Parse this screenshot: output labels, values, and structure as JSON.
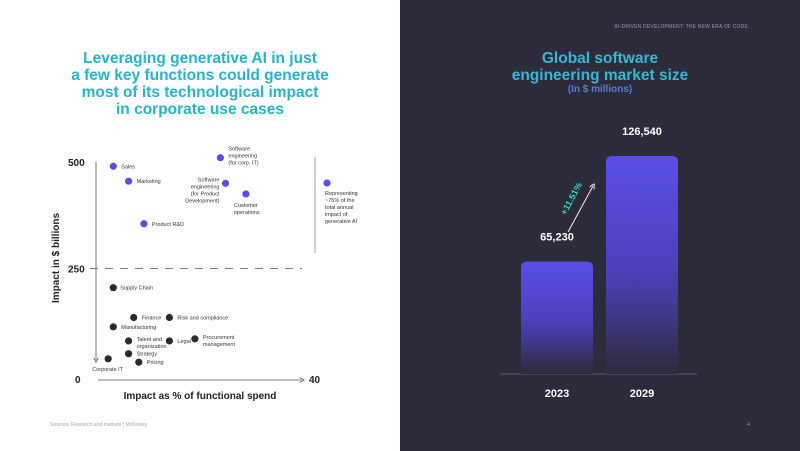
{
  "left": {
    "title": "Leveraging generative AI in just\na few key functions could generate\nmost of its technological impact\nin corporate use cases",
    "source": "Sources: Research and markets | McKinsey"
  },
  "right": {
    "header_note": "AI-DRIVEN DEVELOPMENT: THE NEW ERA OF CODE",
    "title": "Global software\nengineering market size",
    "subtitle": "(In $ millions)",
    "page_number": "4"
  },
  "colors": {
    "accent_cyan": "#23b6c8",
    "purple": "#5b4de8",
    "dark": "#2a2a2a",
    "dark_bg": "#2c2b3a",
    "growth": "#3ad6c0"
  },
  "chart_data": [
    {
      "type": "scatter",
      "xlabel": "Impact as % of functional spend",
      "ylabel": "Impact in $ billions",
      "tick_labels": [
        "500",
        "250",
        "0",
        "40"
      ],
      "xlim": [
        0,
        40
      ],
      "ylim": [
        0,
        500
      ],
      "threshold_y": 250,
      "bracket_note": "Representing\n~75% of the\ntotal annual\nimpact of\ngenerative AI",
      "series": [
        {
          "name": "high",
          "color": "#5b4de8",
          "points": [
            {
              "label": "Sales",
              "x": 3,
              "y": 490
            },
            {
              "label": "Marketing",
              "x": 6,
              "y": 455
            },
            {
              "label": "Product R&D",
              "x": 9,
              "y": 355
            },
            {
              "label": "Software\nengineering\n(for corp. IT)",
              "x": 24,
              "y": 510
            },
            {
              "label": "Software\nengineering\n(for Product\nDevelopment)",
              "x": 25,
              "y": 450
            },
            {
              "label": "Customer\noperations",
              "x": 29,
              "y": 425
            }
          ]
        },
        {
          "name": "low",
          "color": "#2a2a2a",
          "points": [
            {
              "label": "Supply Chain",
              "x": 3,
              "y": 205
            },
            {
              "label": "Finance",
              "x": 7,
              "y": 135
            },
            {
              "label": "Risk and compliance",
              "x": 14,
              "y": 135
            },
            {
              "label": "Manufacturing",
              "x": 3,
              "y": 113
            },
            {
              "label": "Talent and\norganization",
              "x": 6,
              "y": 80
            },
            {
              "label": "Legal",
              "x": 14,
              "y": 80
            },
            {
              "label": "Procurement\nmanagement",
              "x": 19,
              "y": 85
            },
            {
              "label": "Strategy",
              "x": 6,
              "y": 50
            },
            {
              "label": "Corporate IT",
              "x": 2,
              "y": 38
            },
            {
              "label": "Pricing",
              "x": 8,
              "y": 30
            }
          ]
        }
      ]
    },
    {
      "type": "bar",
      "categories": [
        "2023",
        "2029"
      ],
      "values": [
        65230,
        126540
      ],
      "value_labels": [
        "65,230",
        "126,540"
      ],
      "growth_label": "+11.51%",
      "ylim": [
        0,
        130000
      ]
    }
  ]
}
